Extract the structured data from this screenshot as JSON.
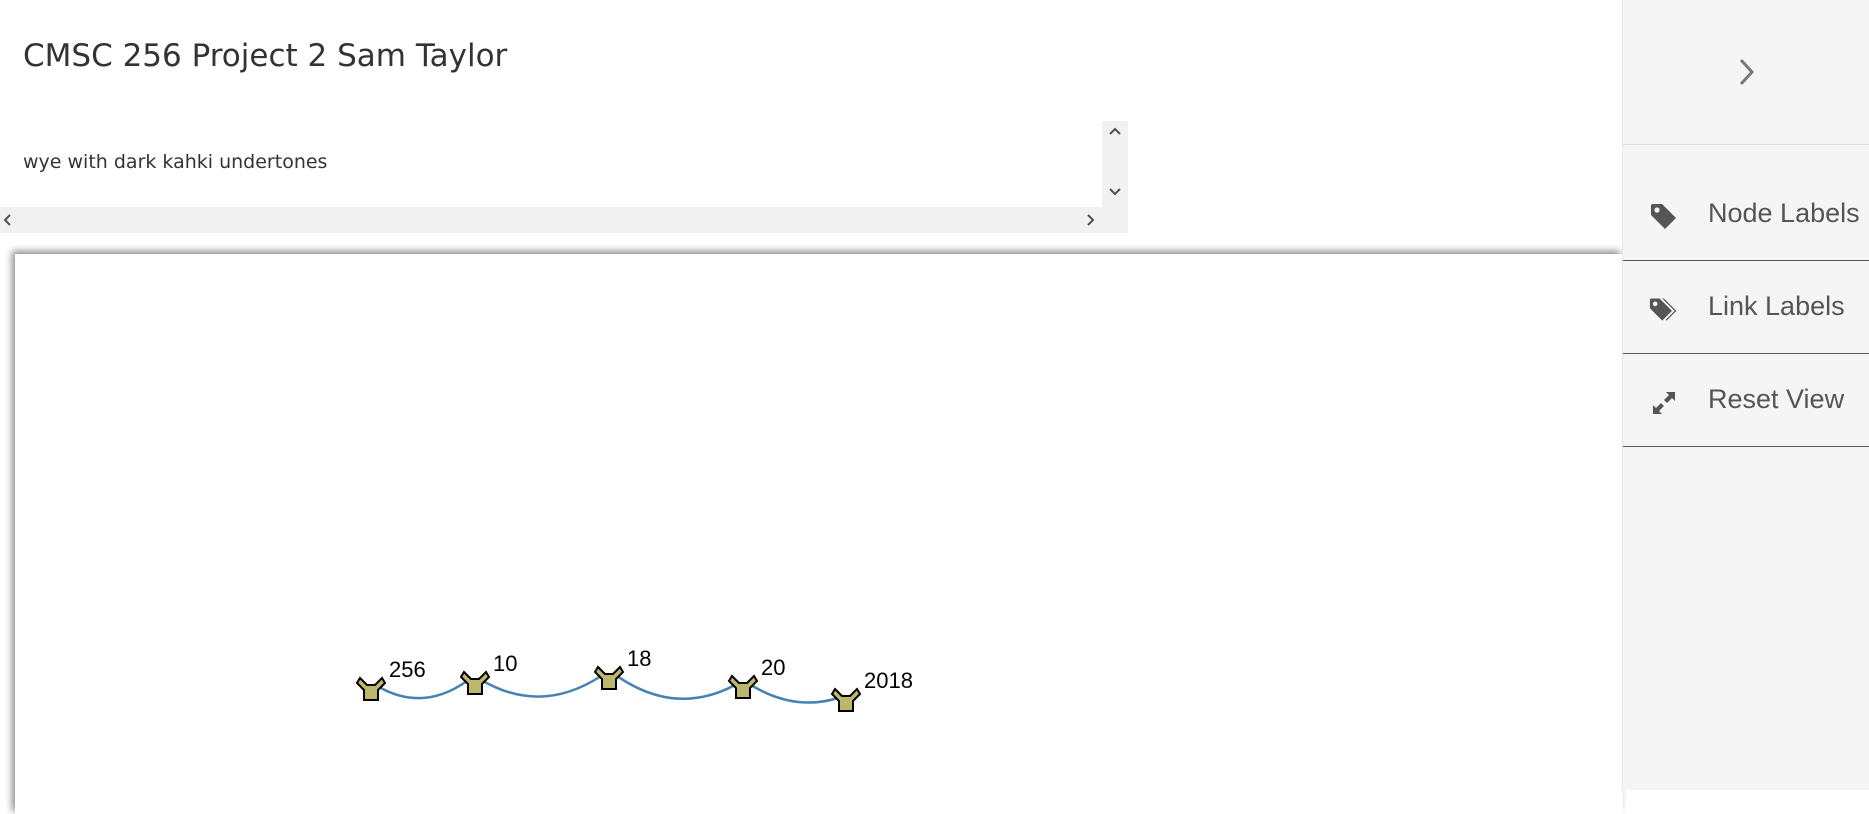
{
  "page": {
    "title": "CMSC 256 Project 2 Sam Taylor"
  },
  "description": {
    "text": "wye with dark kahki undertones"
  },
  "graph": {
    "nodes": [
      {
        "label": "256"
      },
      {
        "label": "10"
      },
      {
        "label": "18"
      },
      {
        "label": "20"
      },
      {
        "label": "2018"
      }
    ],
    "links": [
      {
        "source": "256",
        "target": "10"
      },
      {
        "source": "10",
        "target": "18"
      },
      {
        "source": "18",
        "target": "20"
      },
      {
        "source": "20",
        "target": "2018"
      }
    ],
    "colors": {
      "node_fill": "#bdb76b",
      "link": "#4682b4"
    },
    "node_shape": "wye"
  },
  "side_panel": {
    "toggle_icon": "chevron-right-icon",
    "items": [
      {
        "label": "Node Labels",
        "icon": "tag-icon"
      },
      {
        "label": "Link Labels",
        "icon": "tags-icon"
      },
      {
        "label": "Reset View",
        "icon": "expand-icon"
      }
    ]
  }
}
